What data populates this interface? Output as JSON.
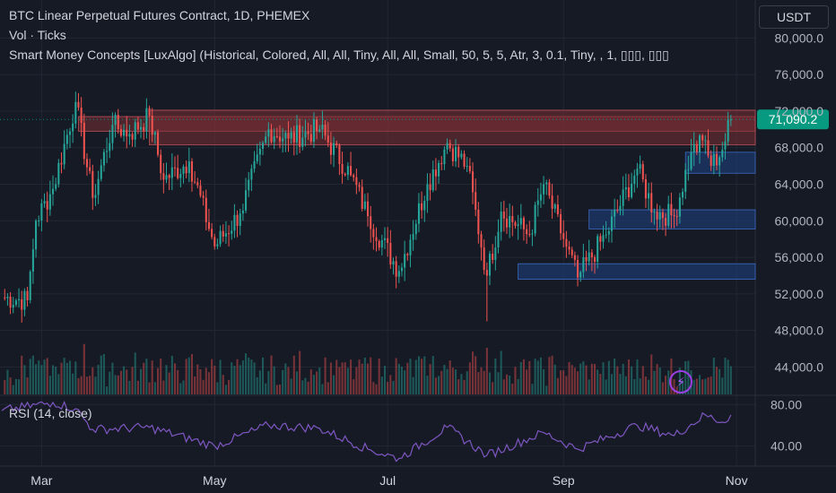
{
  "header": {
    "title": "BTC Linear Perpetual Futures Contract, 1D, PHEMEX",
    "volume_label": "Vol · Ticks",
    "indicator_label": "Smart Money Concepts [LuxAlgo] (Historical, Colored, All, All, Tiny, All, All, Small, 50, 5, 5, Atr, 3, 0.1, Tiny, , 1, ▯▯▯, ▯▯▯",
    "currency_button": "USDT"
  },
  "rsi": {
    "label": "RSI (14, close)",
    "ticks": [
      "80.00",
      "40.00"
    ]
  },
  "colors": {
    "background": "#161a25",
    "up": "#26a69a",
    "down": "#ef5350",
    "rsi_line": "#7e57c2",
    "bull_zone": "#1e3a6e",
    "bear_zone": "#7a2f35",
    "last_price_bg": "#089981"
  },
  "chart_data": [
    {
      "type": "candlestick",
      "title": "BTC Linear Perpetual Futures Contract, 1D, PHEMEX",
      "y_ticks": [
        "80,000.0",
        "76,000.0",
        "72,000.0",
        "68,000.0",
        "64,000.0",
        "60,000.0",
        "56,000.0",
        "52,000.0",
        "48,000.0",
        "44,000.0"
      ],
      "y_tick_values": [
        80000,
        76000,
        72000,
        68000,
        64000,
        60000,
        56000,
        52000,
        48000,
        44000
      ],
      "ylim": [
        41000,
        82000
      ],
      "x_ticks": [
        "Mar",
        "May",
        "Jul",
        "Sep",
        "Nov"
      ],
      "x_range": [
        "2024-02-16",
        "2024-11-07"
      ],
      "last_price": "71,090.2",
      "last_price_value": 71090.2,
      "order_blocks": [
        {
          "kind": "bearish",
          "from": "2024-03-14",
          "to": "2024-11-07",
          "low": 69800,
          "high": 71400
        },
        {
          "kind": "bearish",
          "from": "2024-04-08",
          "to": "2024-11-07",
          "low": 68300,
          "high": 72100
        },
        {
          "kind": "bullish",
          "from": "2024-10-14",
          "to": "2024-11-07",
          "low": 65200,
          "high": 67500
        },
        {
          "kind": "bullish",
          "from": "2024-09-10",
          "to": "2024-11-07",
          "low": 59100,
          "high": 61200
        },
        {
          "kind": "bullish",
          "from": "2024-08-16",
          "to": "2024-11-07",
          "low": 53600,
          "high": 55300
        }
      ],
      "anchor_closes": [
        [
          "2024-02-16",
          51600
        ],
        [
          "2024-02-25",
          51300
        ],
        [
          "2024-02-28",
          60000
        ],
        [
          "2024-03-05",
          63500
        ],
        [
          "2024-03-13",
          73000
        ],
        [
          "2024-03-19",
          62500
        ],
        [
          "2024-03-26",
          70500
        ],
        [
          "2024-04-01",
          69500
        ],
        [
          "2024-04-08",
          71500
        ],
        [
          "2024-04-13",
          64500
        ],
        [
          "2024-04-22",
          66500
        ],
        [
          "2024-05-01",
          57200
        ],
        [
          "2024-05-10",
          60800
        ],
        [
          "2024-05-20",
          70000
        ],
        [
          "2024-05-27",
          69000
        ],
        [
          "2024-06-07",
          70000
        ],
        [
          "2024-06-18",
          65000
        ],
        [
          "2024-06-24",
          60500
        ],
        [
          "2024-07-05",
          54500
        ],
        [
          "2024-07-15",
          64000
        ],
        [
          "2024-07-22",
          68500
        ],
        [
          "2024-07-29",
          66000
        ],
        [
          "2024-08-05",
          54000
        ],
        [
          "2024-08-10",
          61000
        ],
        [
          "2024-08-20",
          58500
        ],
        [
          "2024-08-25",
          64000
        ],
        [
          "2024-09-01",
          58000
        ],
        [
          "2024-09-06",
          53800
        ],
        [
          "2024-09-16",
          58500
        ],
        [
          "2024-09-27",
          65700
        ],
        [
          "2024-10-03",
          61000
        ],
        [
          "2024-10-10",
          60500
        ],
        [
          "2024-10-16",
          67500
        ],
        [
          "2024-10-21",
          68800
        ],
        [
          "2024-10-23",
          66000
        ],
        [
          "2024-10-27",
          67800
        ],
        [
          "2024-10-30",
          71090
        ]
      ]
    },
    {
      "type": "line",
      "title": "RSI (14, close)",
      "y_ticks": [
        "80.00",
        "40.00"
      ],
      "y_tick_values": [
        80,
        40
      ],
      "ylim": [
        25,
        88
      ],
      "anchors": [
        [
          "2024-02-16",
          74
        ],
        [
          "2024-03-05",
          82
        ],
        [
          "2024-03-13",
          76
        ],
        [
          "2024-03-19",
          56
        ],
        [
          "2024-04-08",
          58
        ],
        [
          "2024-05-01",
          40
        ],
        [
          "2024-05-20",
          60
        ],
        [
          "2024-06-07",
          57
        ],
        [
          "2024-06-24",
          37
        ],
        [
          "2024-07-05",
          28
        ],
        [
          "2024-07-22",
          58
        ],
        [
          "2024-08-05",
          31
        ],
        [
          "2024-08-25",
          53
        ],
        [
          "2024-09-06",
          37
        ],
        [
          "2024-09-27",
          60
        ],
        [
          "2024-10-10",
          50
        ],
        [
          "2024-10-21",
          70
        ],
        [
          "2024-10-27",
          63
        ],
        [
          "2024-10-30",
          70
        ]
      ]
    }
  ]
}
